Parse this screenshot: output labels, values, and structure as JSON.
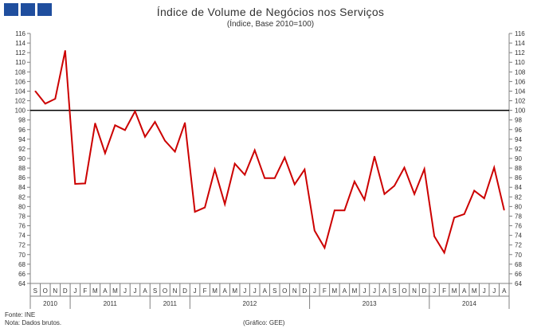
{
  "header": {
    "title": "Índice de Volume de Negócios nos Serviços",
    "subtitle": "(Índice, Base 2010=100)"
  },
  "colors": {
    "logo": "#1f4e9e",
    "series": "#cc0000",
    "reference_line": "#000000",
    "axis": "#808080"
  },
  "footer": {
    "source": "Fonte: INE",
    "note": "Nota: Dados brutos.",
    "credit": "(Gráfico: GEE)"
  },
  "chart_data": {
    "type": "line",
    "title": "Índice de Volume de Negócios nos Serviços",
    "subtitle": "(Índice, Base 2010=100)",
    "ylim": [
      64,
      116
    ],
    "ytick_step": 2,
    "y_axis_both_sides": true,
    "grid": false,
    "reference_line": 100,
    "x": [
      "S",
      "O",
      "N",
      "D",
      "J",
      "F",
      "M",
      "A",
      "M",
      "J",
      "J",
      "A",
      "S",
      "O",
      "N",
      "D",
      "J",
      "F",
      "M",
      "A",
      "M",
      "J",
      "J",
      "A",
      "S",
      "O",
      "N",
      "D",
      "J",
      "F",
      "M",
      "A",
      "M",
      "J",
      "J",
      "A",
      "S",
      "O",
      "N",
      "D",
      "J",
      "F",
      "M",
      "A",
      "M",
      "J",
      "J",
      "A"
    ],
    "x_groups": [
      {
        "label": "2010",
        "count": 4
      },
      {
        "label": "2011",
        "count": 8
      },
      {
        "label": "2011",
        "count": 4
      },
      {
        "label": "2012",
        "count": 12
      },
      {
        "label": "2013",
        "count": 12
      },
      {
        "label": "2014",
        "count": 8
      }
    ],
    "series": [
      {
        "values": [
          104.0,
          101.4,
          102.4,
          112.4,
          84.7,
          84.8,
          97.3,
          91.1,
          96.9,
          95.9,
          99.8,
          94.5,
          97.6,
          93.7,
          91.4,
          97.4,
          78.9,
          79.8,
          87.7,
          80.5,
          88.9,
          86.6,
          91.7,
          85.9,
          85.9,
          90.2,
          84.6,
          87.7,
          75.0,
          71.4,
          79.2,
          79.2,
          85.2,
          81.4,
          90.4,
          82.6,
          84.3,
          88.1,
          82.6,
          87.8,
          73.8,
          70.4,
          77.7,
          78.4,
          83.3,
          81.7,
          88.1,
          79.3
        ]
      }
    ]
  }
}
